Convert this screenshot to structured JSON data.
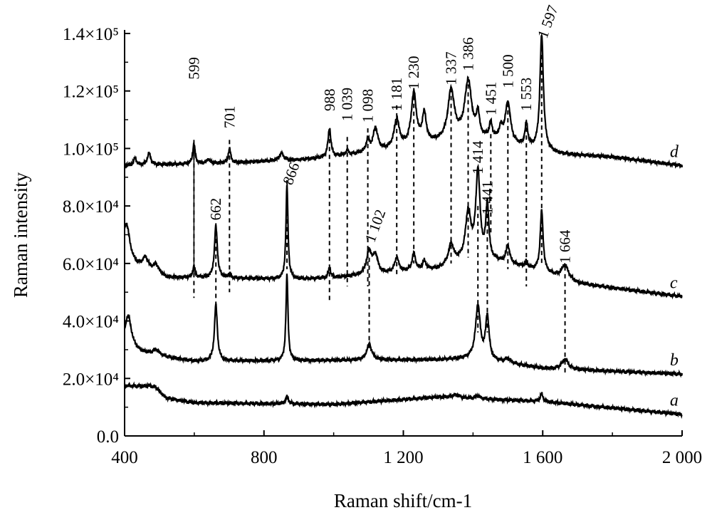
{
  "chart_data": {
    "type": "line",
    "title": "",
    "xlabel": "Raman shift/cm-1",
    "ylabel": "Raman intensity",
    "xlim": [
      400,
      2000
    ],
    "ylim": [
      0,
      140000
    ],
    "xticks": [
      400,
      800,
      1200,
      1600,
      2000
    ],
    "xtick_labels": [
      "400",
      "800",
      "1 200",
      "1 600",
      "2 000"
    ],
    "yticks": [
      0,
      20000,
      40000,
      60000,
      80000,
      100000,
      120000,
      140000
    ],
    "ytick_labels": [
      "0.0",
      "2.0×10⁴",
      "4.0×10⁴",
      "6.0×10⁴",
      "8.0×10⁴",
      "1.0×10⁵",
      "1.2×10⁵",
      "1.4×10⁵"
    ],
    "series": [
      {
        "name": "a",
        "baseline": [
          [
            400,
            17500
          ],
          [
            470,
            17000
          ],
          [
            520,
            13000
          ],
          [
            600,
            11500
          ],
          [
            1000,
            11000
          ],
          [
            1300,
            13500
          ],
          [
            1400,
            13000
          ],
          [
            1600,
            12000
          ],
          [
            2000,
            7500
          ]
        ],
        "peaks": [
          [
            490,
            1500,
            15
          ],
          [
            866,
            2500,
            5
          ],
          [
            1350,
            1000,
            15
          ],
          [
            1414,
            1000,
            8
          ],
          [
            1597,
            2500,
            5
          ]
        ]
      },
      {
        "name": "b",
        "baseline": [
          [
            400,
            30000
          ],
          [
            480,
            28000
          ],
          [
            600,
            26000
          ],
          [
            1300,
            26500
          ],
          [
            1400,
            27000
          ],
          [
            1600,
            23500
          ],
          [
            2000,
            21500
          ]
        ],
        "peaks": [
          [
            410,
            12000,
            12
          ],
          [
            490,
            2000,
            12
          ],
          [
            662,
            19500,
            5
          ],
          [
            866,
            30000,
            3.5
          ],
          [
            1102,
            5500,
            9
          ],
          [
            1414,
            18500,
            8
          ],
          [
            1441,
            15000,
            6
          ],
          [
            1500,
            1500,
            10
          ],
          [
            1664,
            3500,
            11
          ]
        ]
      },
      {
        "name": "c",
        "baseline": [
          [
            400,
            60000
          ],
          [
            450,
            58000
          ],
          [
            520,
            55000
          ],
          [
            600,
            55000
          ],
          [
            900,
            54500
          ],
          [
            1000,
            55000
          ],
          [
            1300,
            58000
          ],
          [
            1400,
            62000
          ],
          [
            1500,
            60000
          ],
          [
            1600,
            57000
          ],
          [
            1700,
            53000
          ],
          [
            2000,
            48500
          ]
        ],
        "peaks": [
          [
            405,
            14000,
            12
          ],
          [
            460,
            4000,
            10
          ],
          [
            490,
            3000,
            10
          ],
          [
            599,
            4000,
            4
          ],
          [
            662,
            18000,
            5
          ],
          [
            701,
            1500,
            4
          ],
          [
            866,
            33000,
            3.5
          ],
          [
            988,
            3500,
            4
          ],
          [
            1102,
            8000,
            9
          ],
          [
            1120,
            6000,
            8
          ],
          [
            1181,
            5000,
            7
          ],
          [
            1230,
            6000,
            6
          ],
          [
            1260,
            3000,
            6
          ],
          [
            1337,
            7000,
            9
          ],
          [
            1386,
            16000,
            9
          ],
          [
            1414,
            30000,
            7
          ],
          [
            1441,
            19000,
            5
          ],
          [
            1500,
            6000,
            6
          ],
          [
            1553,
            2000,
            4
          ],
          [
            1597,
            21000,
            5
          ],
          [
            1664,
            5000,
            12
          ]
        ]
      },
      {
        "name": "d",
        "baseline": [
          [
            400,
            94000
          ],
          [
            700,
            95000
          ],
          [
            900,
            96000
          ],
          [
            1000,
            97000
          ],
          [
            1200,
            100000
          ],
          [
            1350,
            103000
          ],
          [
            1450,
            103000
          ],
          [
            1550,
            100000
          ],
          [
            1650,
            98000
          ],
          [
            1800,
            97000
          ],
          [
            2000,
            94000
          ]
        ],
        "peaks": [
          [
            430,
            2500,
            5
          ],
          [
            470,
            4000,
            6
          ],
          [
            599,
            7000,
            4
          ],
          [
            640,
            1500,
            5
          ],
          [
            701,
            5000,
            4
          ],
          [
            850,
            2500,
            8
          ],
          [
            988,
            10000,
            5
          ],
          [
            1039,
            1500,
            5
          ],
          [
            1098,
            4000,
            6
          ],
          [
            1120,
            8000,
            8
          ],
          [
            1181,
            10000,
            9
          ],
          [
            1230,
            18000,
            9
          ],
          [
            1260,
            10000,
            7
          ],
          [
            1337,
            17000,
            11
          ],
          [
            1386,
            20000,
            12
          ],
          [
            1414,
            8000,
            5
          ],
          [
            1451,
            5000,
            5
          ],
          [
            1480,
            4000,
            6
          ],
          [
            1500,
            14000,
            9
          ],
          [
            1553,
            8000,
            5
          ],
          [
            1597,
            40000,
            6
          ]
        ]
      }
    ],
    "annotations": [
      {
        "label": "599",
        "x": 599,
        "line": [
          48000,
          103000
        ],
        "text_y": 124000,
        "rot": -90
      },
      {
        "label": "701",
        "x": 701,
        "line": [
          50000,
          103000
        ],
        "text_y": 107000,
        "rot": -90
      },
      {
        "label": "988",
        "x": 988,
        "line": [
          47000,
          106000
        ],
        "text_y": 113000,
        "rot": -90
      },
      {
        "label": "1 039",
        "x": 1039,
        "line": [
          52000,
          104000
        ],
        "text_y": 109500,
        "rot": -90
      },
      {
        "label": "1 098",
        "x": 1098,
        "line": [
          52000,
          107000
        ],
        "text_y": 109000,
        "rot": -90
      },
      {
        "label": "1 181",
        "x": 1181,
        "line": [
          56000,
          115000
        ],
        "text_y": 113000,
        "rot": -90
      },
      {
        "label": "1 230",
        "x": 1230,
        "line": [
          60000,
          121000
        ],
        "text_y": 120500,
        "rot": -90
      },
      {
        "label": "1 337",
        "x": 1337,
        "line": [
          60000,
          121000
        ],
        "text_y": 122000,
        "rot": -90
      },
      {
        "label": "1 386",
        "x": 1386,
        "line": [
          62000,
          125000
        ],
        "text_y": 127000,
        "rot": -90
      },
      {
        "label": "1 451",
        "x": 1451,
        "line": [
          70000,
          105000
        ],
        "text_y": 111500,
        "rot": -90
      },
      {
        "label": "1 500",
        "x": 1500,
        "line": [
          58000,
          116000
        ],
        "text_y": 121000,
        "rot": -90
      },
      {
        "label": "1 553",
        "x": 1553,
        "line": [
          52000,
          110000
        ],
        "text_y": 113000,
        "rot": -90
      },
      {
        "label": "1 597",
        "x": 1597,
        "line": [
          60000,
          138000
        ],
        "text_y": 138000,
        "rot": -70
      },
      {
        "label": "662",
        "x": 662,
        "line": [
          45000,
          74000
        ],
        "text_y": 75000,
        "rot": -90
      },
      {
        "label": "866",
        "x": 866,
        "line": [
          58000,
          89000
        ],
        "text_y": 87000,
        "rot": -70
      },
      {
        "label": "1 102",
        "x": 1102,
        "line": [
          30000,
          62000
        ],
        "text_y": 67000,
        "rot": -70
      },
      {
        "label": "1 414",
        "x": 1414,
        "line": [
          36000,
          80000
        ],
        "text_y": 91000,
        "rot": -90
      },
      {
        "label": "1 441",
        "x": 1441,
        "line": [
          36000,
          80000
        ],
        "text_y": 77000,
        "rot": -90
      },
      {
        "label": "1 664",
        "x": 1664,
        "line": [
          21000,
          59000
        ],
        "text_y": 60000,
        "rot": -90
      }
    ]
  }
}
